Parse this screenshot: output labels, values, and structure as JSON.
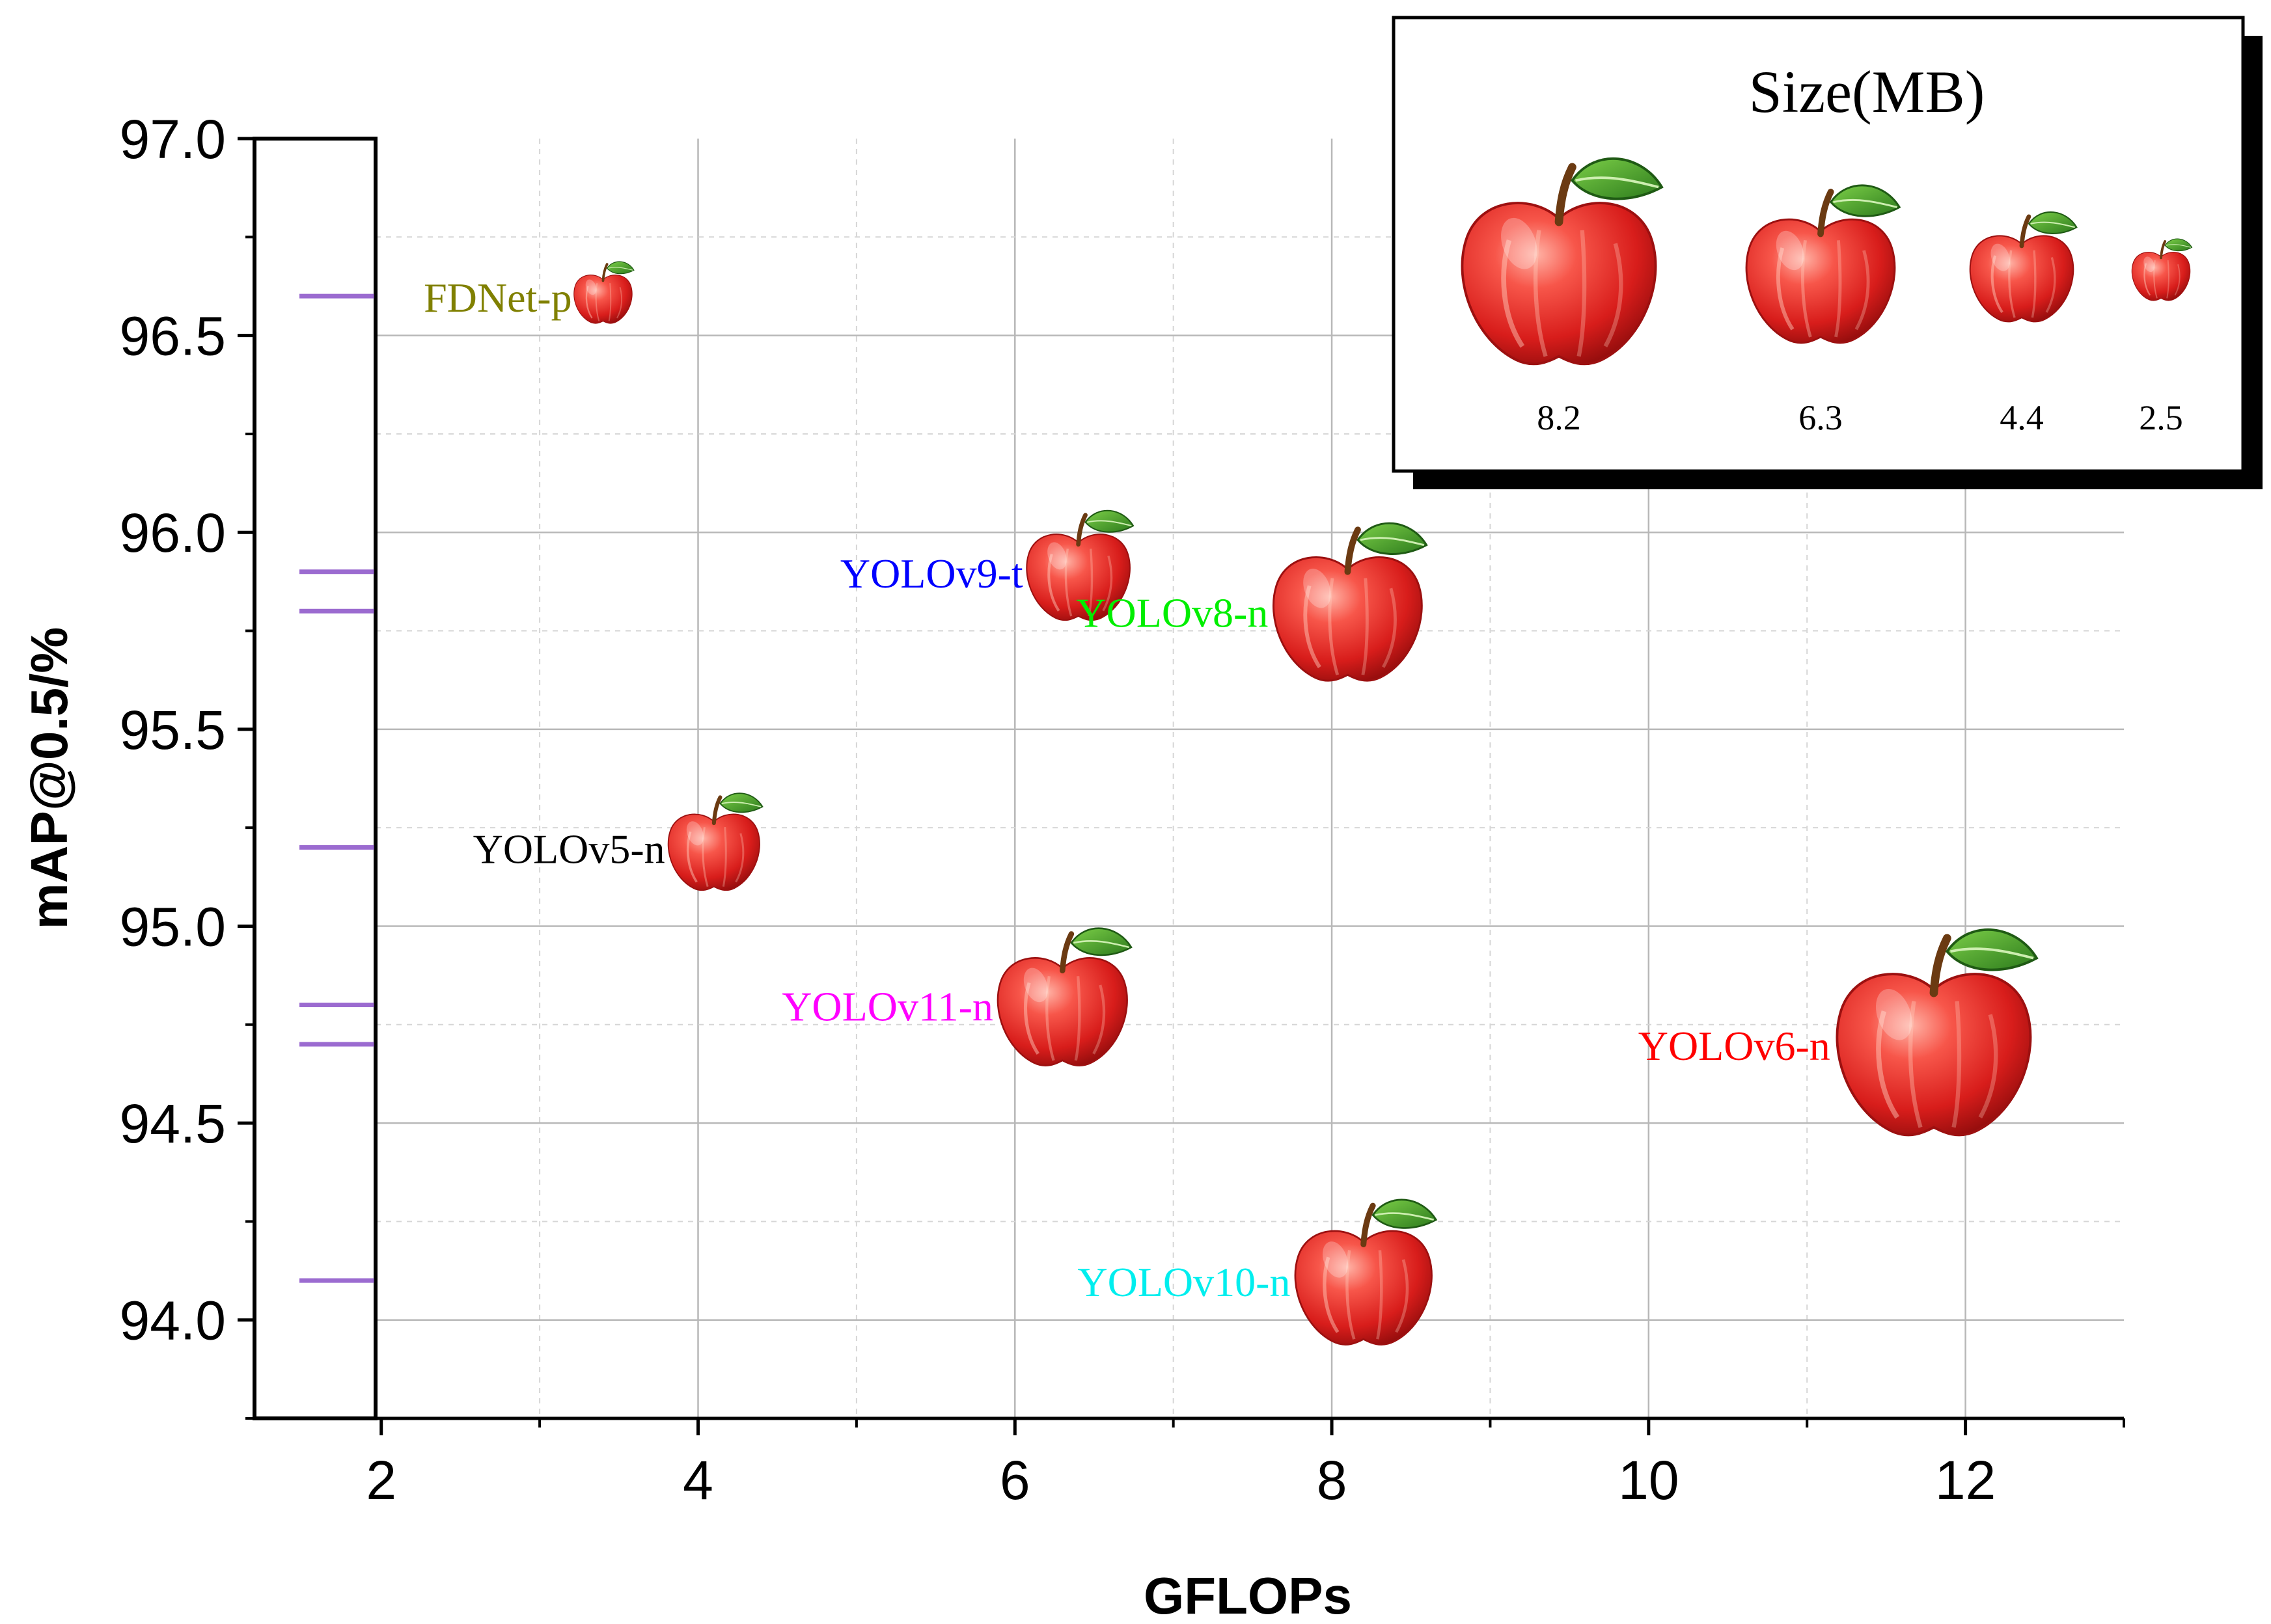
{
  "chart_data": {
    "type": "scatter",
    "title": "",
    "xlabel": "GFLOPs",
    "ylabel": "mAP@0.5/%",
    "xlim": [
      1.2,
      13.0
    ],
    "ylim": [
      93.75,
      97.0
    ],
    "x_ticks": [
      "2",
      "4",
      "6",
      "8",
      "10",
      "12"
    ],
    "y_ticks": [
      "94.0",
      "94.5",
      "95.0",
      "95.5",
      "96.0",
      "96.5",
      "97.0"
    ],
    "grid": true,
    "marker": "apple",
    "points": [
      {
        "label": "FDNet-p",
        "x": 3.4,
        "y": 96.6,
        "size_mb": 2.5,
        "color": "#808000"
      },
      {
        "label": "YOLOv9-t",
        "x": 6.4,
        "y": 95.9,
        "size_mb": 4.4,
        "color": "#0000ff"
      },
      {
        "label": "YOLOv8-n",
        "x": 8.1,
        "y": 95.8,
        "size_mb": 6.3,
        "color": "#00ee00"
      },
      {
        "label": "YOLOv5-n",
        "x": 4.1,
        "y": 95.2,
        "size_mb": 3.9,
        "color": "#000000"
      },
      {
        "label": "YOLOv11-n",
        "x": 6.3,
        "y": 94.8,
        "size_mb": 5.5,
        "color": "#ff00ff"
      },
      {
        "label": "YOLOv6-n",
        "x": 11.8,
        "y": 94.7,
        "size_mb": 8.2,
        "color": "#ff0000"
      },
      {
        "label": "YOLOv10-n",
        "x": 8.2,
        "y": 94.1,
        "size_mb": 5.8,
        "color": "#00eeee"
      }
    ],
    "rug_color": "#9b6bd0",
    "legend": {
      "title": "Size(MB)",
      "position": "top-right",
      "sizes": [
        "8.2",
        "6.3",
        "4.4",
        "2.5"
      ]
    }
  }
}
